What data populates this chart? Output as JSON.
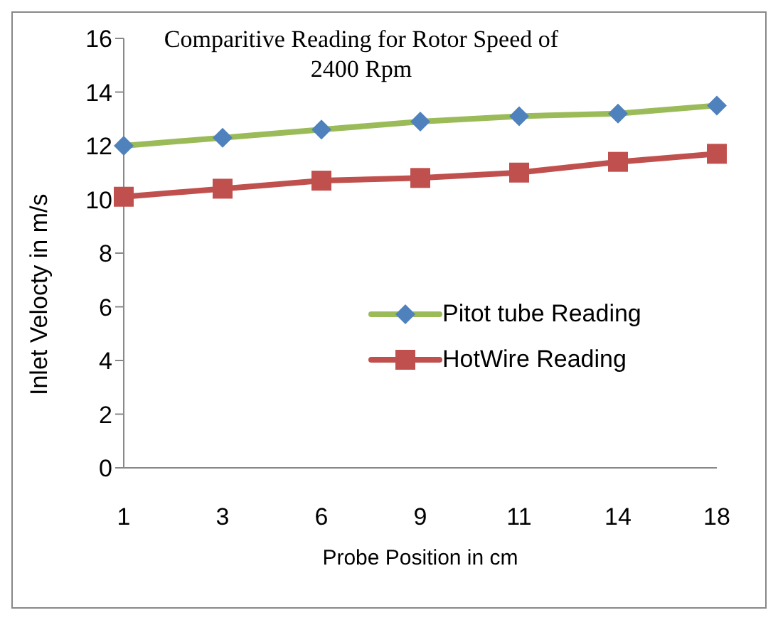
{
  "chart_data": {
    "type": "line",
    "title": "Comparitive Reading for Rotor Speed of 2400 Rpm",
    "xlabel": "Probe Position  in cm",
    "ylabel": "Inlet Velocty in m/s",
    "categories": [
      "1",
      "3",
      "6",
      "9",
      "11",
      "14",
      "18"
    ],
    "series": [
      {
        "name": "Pitot tube Reading",
        "color": "#9bbb59",
        "marker": "diamond",
        "colors": [
          "#4f81bd",
          "#4f81bd",
          "#4f81bd",
          "#4f81bd",
          "#4f81bd",
          "#4f81bd",
          "#4f81bd"
        ],
        "values": [
          12.0,
          12.3,
          12.6,
          12.9,
          13.1,
          13.2,
          13.5
        ]
      },
      {
        "name": "HotWire Reading",
        "color": "#c0504d",
        "marker": "square",
        "values": [
          10.1,
          10.4,
          10.7,
          10.8,
          11.0,
          11.4,
          11.7
        ]
      }
    ],
    "ylim": [
      0,
      16
    ],
    "yticks": [
      0,
      2,
      4,
      6,
      8,
      10,
      12,
      14,
      16
    ],
    "grid": false,
    "legend": "right"
  }
}
